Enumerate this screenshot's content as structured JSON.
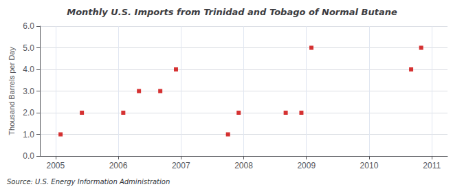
{
  "chart_data": {
    "type": "scatter",
    "title": "Monthly U.S. Imports from Trinidad and Tobago of Normal Butane",
    "ylabel": "Thousand Barrels per Day",
    "source": "Source: U.S. Energy Information Administration",
    "x": [
      2005.08,
      2005.42,
      2006.08,
      2006.33,
      2006.67,
      2006.92,
      2007.75,
      2007.92,
      2008.67,
      2008.92,
      2009.08,
      2010.67,
      2010.83
    ],
    "values": [
      1.0,
      2.0,
      2.0,
      3.0,
      3.0,
      4.0,
      1.0,
      2.0,
      2.0,
      2.0,
      5.0,
      4.0,
      5.0
    ],
    "color": "#cc0000",
    "marker": "square",
    "xlim": [
      2004.75,
      2011.25
    ],
    "xticks": [
      2005,
      2006,
      2007,
      2008,
      2009,
      2010,
      2011
    ],
    "ylim": [
      0.0,
      6.0
    ],
    "yticks": [
      {
        "value": 0,
        "label": "0.0"
      },
      {
        "value": 1,
        "label": "1.0"
      },
      {
        "value": 2,
        "label": "2.0"
      },
      {
        "value": 3,
        "label": "3.0"
      },
      {
        "value": 4,
        "label": "4.0"
      },
      {
        "value": 5,
        "label": "5.0"
      },
      {
        "value": 6,
        "label": "6.0"
      }
    ],
    "grid": true
  }
}
